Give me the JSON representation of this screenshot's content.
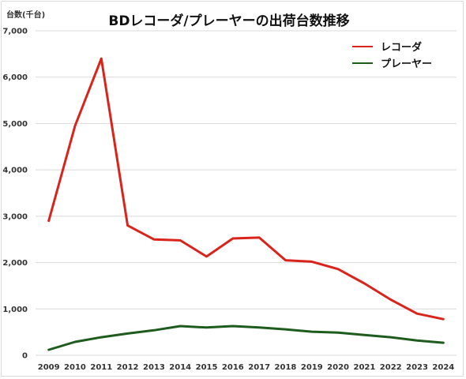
{
  "chart_data": {
    "type": "line",
    "title": "BDレコーダ/プレーヤーの出荷台数推移",
    "ylabel": "台数(千台)",
    "xlabel": "",
    "x": [
      "2009",
      "2010",
      "2011",
      "2012",
      "2013",
      "2014",
      "2015",
      "2016",
      "2017",
      "2018",
      "2019",
      "2020",
      "2021",
      "2022",
      "2023",
      "2024"
    ],
    "ylim": [
      0,
      7000
    ],
    "yticks": [
      0,
      1000,
      2000,
      3000,
      4000,
      5000,
      6000,
      7000
    ],
    "ytick_labels": [
      "0",
      "1,000",
      "2,000",
      "3,000",
      "4,000",
      "5,000",
      "6,000",
      "7,000"
    ],
    "grid": true,
    "legend_position": "top-right",
    "series": [
      {
        "name": "レコーダ",
        "color": "#d9241c",
        "values": [
          2900,
          4950,
          6400,
          2800,
          2500,
          2480,
          2130,
          2520,
          2540,
          2050,
          2020,
          1860,
          1550,
          1200,
          900,
          780
        ]
      },
      {
        "name": "プレーヤー",
        "color": "#1e5c1e",
        "values": [
          120,
          290,
          390,
          470,
          540,
          630,
          600,
          630,
          600,
          560,
          510,
          490,
          440,
          390,
          320,
          270
        ]
      }
    ]
  }
}
